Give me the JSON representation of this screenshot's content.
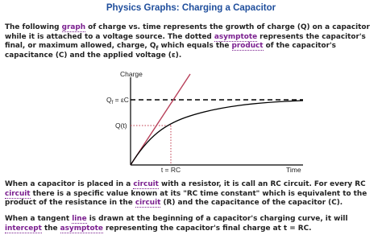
{
  "title": "Physics Graphs: Charging a Capacitor",
  "paragraphs": [
    {
      "segments": [
        {
          "text": "The following ",
          "style": "plain"
        },
        {
          "text": "graph",
          "style": "link"
        },
        {
          "text": " of charge vs. time represents the growth of charge (Q) on a capacitor while it is attached to a voltage source. The dotted ",
          "style": "plain"
        },
        {
          "text": "asymptote",
          "style": "link"
        },
        {
          "text": " represents the capacitor's final, or maximum allowed, charge, Q",
          "style": "plain"
        },
        {
          "text": "f",
          "style": "sub"
        },
        {
          "text": " which equals the ",
          "style": "plain"
        },
        {
          "text": "product",
          "style": "link"
        },
        {
          "text": " of the capacitor's capacitance (C) and the applied voltage (ε).",
          "style": "plain"
        }
      ]
    },
    {
      "segments": [
        {
          "text": "When a capacitor is placed in a ",
          "style": "plain"
        },
        {
          "text": "circuit",
          "style": "link"
        },
        {
          "text": " with a resistor, it is call an RC circuit. For every RC ",
          "style": "plain"
        },
        {
          "text": "circuit",
          "style": "link"
        },
        {
          "text": " there is a specific value known at its \"RC time constant\" which is equivalent to the product of the resistance in the ",
          "style": "plain"
        },
        {
          "text": "circuit",
          "style": "link"
        },
        {
          "text": " (R) and the capacitance of the capacitor (C).",
          "style": "plain"
        }
      ]
    },
    {
      "segments": [
        {
          "text": "When a tangent ",
          "style": "plain"
        },
        {
          "text": "line",
          "style": "link"
        },
        {
          "text": " is drawn at the beginning of a capacitor's charging curve, it will ",
          "style": "plain"
        },
        {
          "text": "intercept",
          "style": "link"
        },
        {
          "text": " the ",
          "style": "plain"
        },
        {
          "text": "asymptote",
          "style": "link"
        },
        {
          "text": " representing the capacitor's final charge at t = RC.",
          "style": "plain"
        }
      ]
    }
  ],
  "figure": {
    "y_axis": "Charge",
    "x_axis": "Time",
    "qf_label": {
      "main": "Q",
      "sub": "f",
      "rest": " = εC"
    },
    "qt_label": "Q(t)",
    "t_label": "t = RC"
  }
}
